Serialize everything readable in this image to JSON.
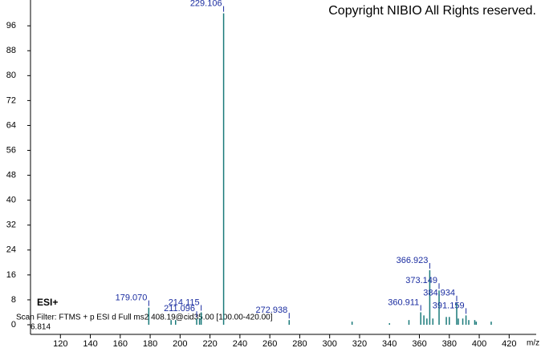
{
  "chart_data": {
    "type": "spectrum",
    "title": "Copyright NIBIO All Rights reserved.",
    "ionization": "ESI+",
    "scan_filter": "Scan Filter: FTMS + p ESI d Full ms2 408.19@cid35.00 [100.00-420.00]",
    "base_peak_value": "6.814",
    "xlabel": "m/z",
    "color": "#1a7a7a",
    "label_color": "#1a2ca0",
    "x": [
      179.07,
      194,
      197,
      211.096,
      213,
      214.115,
      229.106,
      272.938,
      315,
      340,
      353,
      360.911,
      363,
      365,
      366.923,
      369,
      373.149,
      378,
      380,
      384.934,
      386,
      389,
      391.159,
      393,
      397,
      398,
      408
    ],
    "values": [
      5.5,
      1.5,
      1.5,
      2,
      2,
      4,
      100,
      1.5,
      1,
      0.5,
      1.5,
      4,
      3,
      2,
      17.5,
      2,
      11,
      2.5,
      2.5,
      7,
      2,
      2,
      3,
      1.5,
      1.5,
      1,
      1
    ],
    "peak_labels": [
      "179.070",
      null,
      null,
      "211.096",
      null,
      "214.115",
      "229.106",
      "272.938",
      null,
      null,
      null,
      "360.911",
      null,
      null,
      "366.923",
      null,
      "373.149",
      null,
      null,
      "384.934",
      null,
      null,
      "391.159",
      null,
      null,
      null,
      null
    ],
    "xlim": [
      100,
      437
    ],
    "ylim": [
      0,
      103
    ],
    "xticks": [
      120,
      140,
      160,
      180,
      200,
      220,
      240,
      260,
      280,
      300,
      320,
      340,
      360,
      380,
      400,
      420
    ],
    "yticks": [
      0,
      8,
      16,
      24,
      32,
      40,
      48,
      56,
      64,
      72,
      80,
      88,
      96
    ]
  }
}
